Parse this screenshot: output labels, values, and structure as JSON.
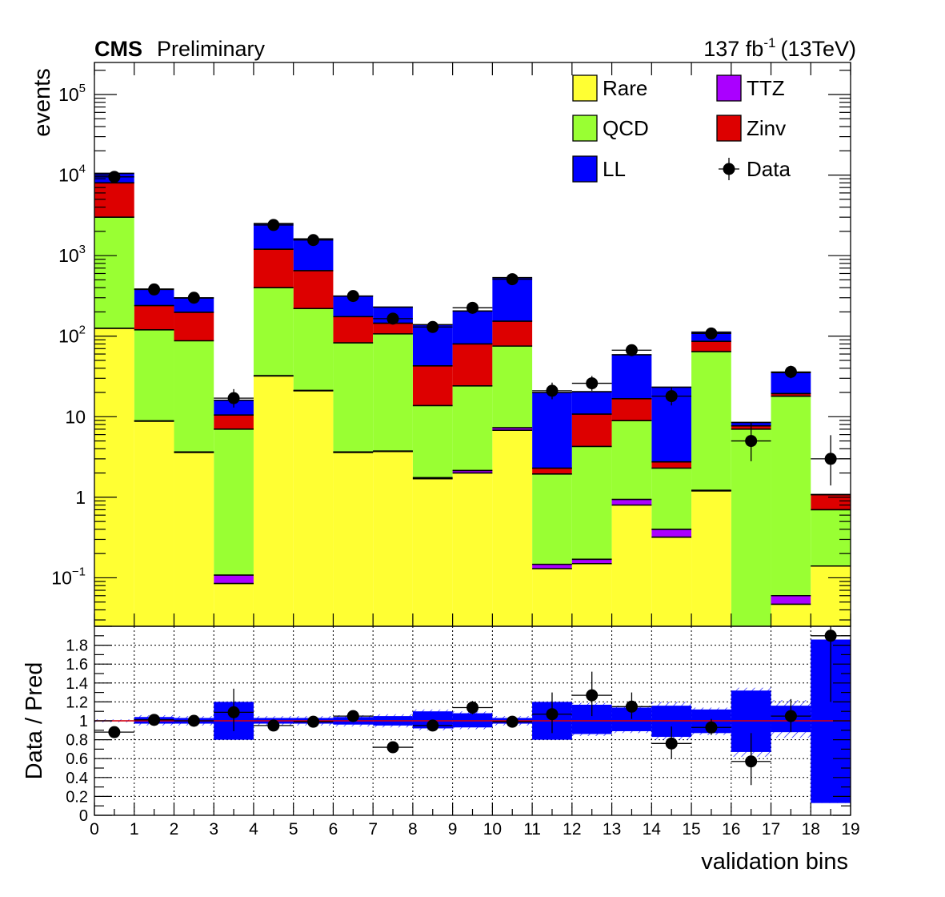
{
  "chart_data": [
    {
      "type": "bar",
      "stacked": true,
      "log_scale": true,
      "title_left_bold": "CMS",
      "title_left": "Preliminary",
      "lumi_label": "137 fb",
      "lumi_sup": "-1",
      "lumi_energy": "(13TeV)",
      "ylabel": "events",
      "ylim": [
        0.025,
        250000
      ],
      "y_tick_labels": [
        {
          "value": 0.1,
          "base": "10",
          "exp": "−1"
        },
        {
          "value": 1,
          "base": "1",
          "exp": ""
        },
        {
          "value": 10,
          "base": "10",
          "exp": ""
        },
        {
          "value": 100,
          "base": "10",
          "exp": "2"
        },
        {
          "value": 1000,
          "base": "10",
          "exp": "3"
        },
        {
          "value": 10000,
          "base": "10",
          "exp": "4"
        },
        {
          "value": 100000,
          "base": "10",
          "exp": "5"
        }
      ],
      "x_bins": [
        0,
        1,
        2,
        3,
        4,
        5,
        6,
        7,
        8,
        9,
        10,
        11,
        12,
        13,
        14,
        15,
        16,
        17,
        18
      ],
      "series": [
        {
          "name": "Rare",
          "color": "#ffff33",
          "values": [
            125,
            8.8,
            3.6,
            0.085,
            32,
            21,
            3.6,
            3.7,
            1.7,
            2.0,
            6.8,
            0.13,
            0.15,
            0.8,
            0.32,
            1.2,
            0.0,
            0.047,
            0.14
          ]
        },
        {
          "name": "TTZ",
          "color": "#aa00ff",
          "values": [
            0.3,
            0.1,
            0.05,
            0.023,
            0.3,
            0.2,
            0.05,
            0.05,
            0.05,
            0.15,
            0.5,
            0.017,
            0.02,
            0.14,
            0.08,
            0.02,
            0.0,
            0.013,
            0.0
          ]
        },
        {
          "name": "QCD",
          "color": "#99ff33",
          "values": [
            2875,
            111,
            84,
            6.9,
            368,
            199,
            79,
            103,
            12,
            22,
            68,
            1.8,
            4.1,
            8.0,
            1.9,
            63,
            7.0,
            17.9,
            0.56
          ]
        },
        {
          "name": "Zinv",
          "color": "#dd0000",
          "values": [
            5000,
            120,
            110,
            3.5,
            800,
            430,
            92,
            38,
            29,
            56,
            78,
            0.35,
            6.5,
            7.8,
            0.45,
            22,
            0.7,
            1.4,
            0.38
          ]
        },
        {
          "name": "LL",
          "color": "#0000ff",
          "values": [
            2500,
            145,
            100,
            5.5,
            1300,
            960,
            140,
            85,
            96,
            125,
            380,
            17.7,
            9.7,
            42,
            20.5,
            26,
            0.8,
            16,
            0.0
          ]
        }
      ],
      "data": {
        "name": "Data",
        "values": [
          9500,
          380,
          300,
          17,
          2400,
          1560,
          315,
          165,
          130,
          225,
          510,
          21,
          26,
          67,
          18,
          108,
          5,
          36,
          3
        ],
        "err_lo": [
          100,
          20,
          17,
          4,
          50,
          40,
          18,
          13,
          11,
          15,
          22,
          4.5,
          5,
          8,
          4.2,
          10,
          2.2,
          6,
          1.6
        ],
        "err_hi": [
          100,
          20,
          17,
          5,
          50,
          40,
          18,
          13,
          11,
          15,
          22,
          5.5,
          6,
          9,
          5.2,
          11,
          3.4,
          7,
          2.9
        ]
      },
      "legend": {
        "placement": "top-right",
        "entries": [
          "Rare",
          "TTZ",
          "QCD",
          "Zinv",
          "LL",
          "Data"
        ]
      }
    },
    {
      "type": "scatter",
      "ylabel": "Data / Pred",
      "xlabel": "validation bins",
      "ylim": [
        0,
        2
      ],
      "xlim": [
        0,
        19
      ],
      "grid": true,
      "reference_line": 1,
      "reference_color": "#dd0000",
      "band_color": "#0000ff",
      "y_tick_labels": [
        "0",
        "0.2",
        "0.4",
        "0.6",
        "0.8",
        "1",
        "1.2",
        "1.4",
        "1.6",
        "1.8"
      ],
      "x_tick_labels": [
        "0",
        "1",
        "2",
        "3",
        "4",
        "5",
        "6",
        "7",
        "8",
        "9",
        "10",
        "11",
        "12",
        "13",
        "14",
        "15",
        "16",
        "17",
        "18",
        "19"
      ],
      "ratio": [
        0.88,
        1.01,
        1.0,
        1.09,
        0.95,
        0.99,
        1.05,
        0.72,
        0.95,
        1.14,
        0.99,
        1.07,
        1.27,
        1.15,
        0.76,
        0.93,
        0.57,
        1.05,
        1.9
      ],
      "ratio_err_lo": [
        0.04,
        0.03,
        0.03,
        0.2,
        0.03,
        0.03,
        0.04,
        0.05,
        0.06,
        0.07,
        0.03,
        0.2,
        0.22,
        0.13,
        0.16,
        0.08,
        0.25,
        0.17,
        0.7
      ],
      "ratio_err_hi": [
        0.04,
        0.03,
        0.03,
        0.25,
        0.03,
        0.03,
        0.04,
        0.05,
        0.06,
        0.07,
        0.03,
        0.23,
        0.25,
        0.15,
        0.18,
        0.09,
        0.3,
        0.18,
        0.3
      ],
      "band_lo": [
        0.995,
        0.97,
        0.97,
        0.8,
        0.97,
        0.97,
        0.96,
        0.95,
        0.92,
        0.93,
        0.97,
        0.8,
        0.86,
        0.89,
        0.83,
        0.87,
        0.67,
        0.88,
        0.13
      ],
      "band_hi": [
        1.005,
        1.04,
        1.03,
        1.2,
        1.03,
        1.03,
        1.04,
        1.05,
        1.1,
        1.08,
        1.03,
        1.2,
        1.17,
        1.14,
        1.16,
        1.12,
        1.32,
        1.16,
        1.86
      ],
      "hatch_lo": [
        0.985,
        0.95,
        0.95,
        0.8,
        0.95,
        0.95,
        0.94,
        0.93,
        0.9,
        0.91,
        0.95,
        0.8,
        0.84,
        0.87,
        0.8,
        0.85,
        0.62,
        0.82,
        0.13
      ],
      "hatch_hi": [
        1.015,
        1.06,
        1.05,
        1.2,
        1.05,
        1.05,
        1.06,
        1.07,
        1.12,
        1.1,
        1.05,
        1.2,
        1.19,
        1.16,
        1.2,
        1.14,
        1.35,
        1.22,
        1.86
      ]
    }
  ]
}
